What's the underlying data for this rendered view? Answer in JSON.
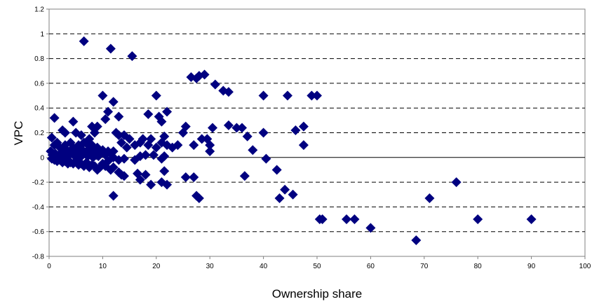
{
  "chart_data": {
    "type": "scatter",
    "title": "",
    "xlabel": "Ownership share",
    "ylabel": "VPC",
    "xlim": [
      0,
      100
    ],
    "ylim": [
      -0.8,
      1.2
    ],
    "xticks": [
      0,
      10,
      20,
      30,
      40,
      50,
      60,
      70,
      80,
      90,
      100
    ],
    "yticks": [
      -0.8,
      -0.6,
      -0.4,
      -0.2,
      0,
      0.2,
      0.4,
      0.6,
      0.8,
      1,
      1.2
    ],
    "xtick_labels": [
      "0",
      "10",
      "20",
      "30",
      "40",
      "50",
      "60",
      "70",
      "80",
      "90",
      "100"
    ],
    "ytick_labels": [
      "-0.8",
      "-0.6",
      "-0.4",
      "-0.2",
      "0",
      "0.2",
      "0.4",
      "0.6",
      "0.8",
      "1",
      "1.2"
    ],
    "grid": "horizontal-dashed",
    "legend": "none",
    "marker": "diamond",
    "marker_color": "#000080",
    "series": [
      {
        "points": [
          [
            6.5,
            0.94
          ],
          [
            11.5,
            0.88
          ],
          [
            15.5,
            0.82
          ],
          [
            26.5,
            0.65
          ],
          [
            28,
            0.66
          ],
          [
            29,
            0.67
          ],
          [
            27.5,
            0.64
          ],
          [
            31,
            0.59
          ],
          [
            32.5,
            0.54
          ],
          [
            33.5,
            0.53
          ],
          [
            10,
            0.5
          ],
          [
            20,
            0.5
          ],
          [
            40,
            0.5
          ],
          [
            44.5,
            0.5
          ],
          [
            49,
            0.5
          ],
          [
            50,
            0.5
          ],
          [
            12,
            0.45
          ],
          [
            11,
            0.37
          ],
          [
            13,
            0.33
          ],
          [
            22,
            0.37
          ],
          [
            20.5,
            0.33
          ],
          [
            21,
            0.29
          ],
          [
            1,
            0.32
          ],
          [
            18.5,
            0.35
          ],
          [
            10.5,
            0.31
          ],
          [
            4.5,
            0.29
          ],
          [
            25.5,
            0.25
          ],
          [
            30.5,
            0.24
          ],
          [
            33.5,
            0.26
          ],
          [
            35,
            0.24
          ],
          [
            36,
            0.24
          ],
          [
            47.5,
            0.25
          ],
          [
            46,
            0.22
          ],
          [
            40,
            0.2
          ],
          [
            37,
            0.17
          ],
          [
            25,
            0.2
          ],
          [
            27,
            0.1
          ],
          [
            28.5,
            0.15
          ],
          [
            29.5,
            0.15
          ],
          [
            30,
            0.1
          ],
          [
            24,
            0.1
          ],
          [
            23,
            0.08
          ],
          [
            21.5,
            0.17
          ],
          [
            38,
            0.06
          ],
          [
            47.5,
            0.1
          ],
          [
            30,
            0.05
          ],
          [
            17,
            0.12
          ],
          [
            19,
            0.15
          ],
          [
            17.5,
            0.15
          ],
          [
            20,
            0.08
          ],
          [
            21,
            0.12
          ],
          [
            22,
            0.1
          ],
          [
            18.5,
            0.1
          ],
          [
            19.5,
            0.02
          ],
          [
            13,
            0.18
          ],
          [
            14,
            0.18
          ],
          [
            15,
            0.15
          ],
          [
            16,
            0.1
          ],
          [
            14.5,
            0.08
          ],
          [
            12.5,
            0.2
          ],
          [
            12,
            0.05
          ],
          [
            13.5,
            0.12
          ],
          [
            8,
            0.25
          ],
          [
            9,
            0.25
          ],
          [
            8.5,
            0.2
          ],
          [
            7.5,
            0.15
          ],
          [
            6,
            0.18
          ],
          [
            5,
            0.2
          ],
          [
            3,
            0.2
          ],
          [
            2.5,
            0.22
          ],
          [
            0.5,
            0.16
          ],
          [
            1,
            0.1
          ],
          [
            1.5,
            0.12
          ],
          [
            2,
            0.08
          ],
          [
            2.5,
            0.06
          ],
          [
            3,
            0.1
          ],
          [
            3.5,
            0.05
          ],
          [
            4,
            0.12
          ],
          [
            4.5,
            0.08
          ],
          [
            5,
            0.06
          ],
          [
            5.5,
            0.1
          ],
          [
            6,
            0.07
          ],
          [
            6.5,
            0.12
          ],
          [
            7,
            0.05
          ],
          [
            7.5,
            0.09
          ],
          [
            8,
            0.1
          ],
          [
            8.5,
            0.06
          ],
          [
            9,
            0.08
          ],
          [
            9.5,
            0.04
          ],
          [
            10,
            0.06
          ],
          [
            0.3,
            0.05
          ],
          [
            0.6,
            0.02
          ],
          [
            0.8,
            0.0
          ],
          [
            1.2,
            0.03
          ],
          [
            1.8,
            0.02
          ],
          [
            2.2,
            0.01
          ],
          [
            2.8,
            0.03
          ],
          [
            3.2,
            0.0
          ],
          [
            3.8,
            0.02
          ],
          [
            4.2,
            0.04
          ],
          [
            4.8,
            0.01
          ],
          [
            5.2,
            0.03
          ],
          [
            5.8,
            0.0
          ],
          [
            6.2,
            0.02
          ],
          [
            6.8,
            0.04
          ],
          [
            7.2,
            0.01
          ],
          [
            7.8,
            0.03
          ],
          [
            8.2,
            0.0
          ],
          [
            8.8,
            0.02
          ],
          [
            9.2,
            0.01
          ],
          [
            10.5,
            0.02
          ],
          [
            11,
            0.05
          ],
          [
            11.5,
            0.03
          ],
          [
            12,
            0.0
          ],
          [
            0.5,
            -0.01
          ],
          [
            1,
            -0.02
          ],
          [
            1.5,
            -0.03
          ],
          [
            2,
            -0.02
          ],
          [
            2.5,
            -0.04
          ],
          [
            3,
            -0.03
          ],
          [
            3.5,
            -0.05
          ],
          [
            4,
            -0.04
          ],
          [
            4.5,
            -0.05
          ],
          [
            5,
            -0.03
          ],
          [
            5.5,
            -0.06
          ],
          [
            6,
            -0.05
          ],
          [
            6.5,
            -0.07
          ],
          [
            7,
            -0.04
          ],
          [
            7.5,
            -0.08
          ],
          [
            8,
            -0.06
          ],
          [
            8.5,
            -0.07
          ],
          [
            9,
            -0.1
          ],
          [
            9.5,
            -0.08
          ],
          [
            10,
            -0.05
          ],
          [
            10.5,
            -0.07
          ],
          [
            11.5,
            -0.1
          ],
          [
            12,
            -0.08
          ],
          [
            13,
            -0.12
          ],
          [
            13.5,
            -0.14
          ],
          [
            14,
            -0.15
          ],
          [
            11,
            -0.03
          ],
          [
            13,
            -0.02
          ],
          [
            14,
            -0.01
          ],
          [
            16,
            -0.02
          ],
          [
            17,
            0.01
          ],
          [
            18,
            0.02
          ],
          [
            21,
            -0.01
          ],
          [
            21.5,
            0.01
          ],
          [
            16.5,
            -0.13
          ],
          [
            17,
            -0.18
          ],
          [
            18,
            -0.14
          ],
          [
            19,
            -0.22
          ],
          [
            21.5,
            -0.11
          ],
          [
            21,
            -0.2
          ],
          [
            22,
            -0.22
          ],
          [
            12,
            -0.31
          ],
          [
            25.5,
            -0.16
          ],
          [
            27,
            -0.16
          ],
          [
            27.5,
            -0.31
          ],
          [
            28,
            -0.33
          ],
          [
            36.5,
            -0.15
          ],
          [
            40.5,
            -0.01
          ],
          [
            42.5,
            -0.1
          ],
          [
            43,
            -0.33
          ],
          [
            44,
            -0.26
          ],
          [
            45.5,
            -0.3
          ],
          [
            50.5,
            -0.5
          ],
          [
            51,
            -0.5
          ],
          [
            55.5,
            -0.5
          ],
          [
            57,
            -0.5
          ],
          [
            60,
            -0.57
          ],
          [
            68.5,
            -0.67
          ],
          [
            71,
            -0.33
          ],
          [
            76,
            -0.2
          ],
          [
            80,
            -0.5
          ],
          [
            90,
            -0.5
          ]
        ]
      }
    ]
  }
}
